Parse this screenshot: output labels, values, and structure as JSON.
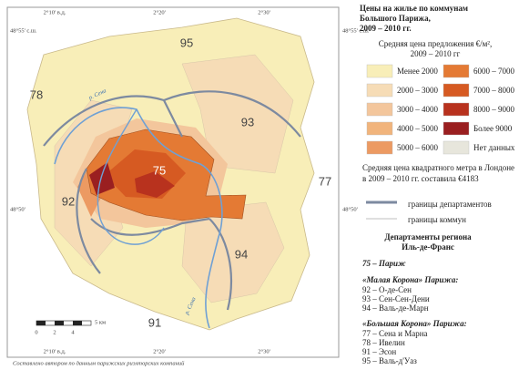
{
  "title": [
    "Цены на жилье по коммунам",
    "Большого Парижа,",
    "2009 – 2010 гг."
  ],
  "legend": {
    "title": [
      "Средняя цена предложения €/м²,",
      "2009 – 2010 гг"
    ],
    "items": [
      {
        "label": "Менее 2000",
        "color": "#f8eeb8"
      },
      {
        "label": "2000 – 3000",
        "color": "#f6dcb6"
      },
      {
        "label": "3000 – 4000",
        "color": "#f3c69c"
      },
      {
        "label": "4000 – 5000",
        "color": "#f1b47c"
      },
      {
        "label": "5000 – 6000",
        "color": "#ec9a62"
      },
      {
        "label": "6000 – 7000",
        "color": "#e47a34"
      },
      {
        "label": "7000 – 8000",
        "color": "#d65a22"
      },
      {
        "label": "8000 – 9000",
        "color": "#b8321e"
      },
      {
        "label": "Более 9000",
        "color": "#9a1f20"
      },
      {
        "label": "Нет данных",
        "color": "#e7e6dc"
      }
    ]
  },
  "london_note": [
    "Средняя цена квадратного метра в Лондоне",
    "в 2009 – 2010 гг. составила €4183"
  ],
  "line_legend": [
    "границы департаментов",
    "границы коммун"
  ],
  "departments": {
    "title": [
      "Департаменты региона",
      "Иль-де-Франс"
    ],
    "paris": "75 – Париж",
    "small_crown": {
      "title": "«Малая Корона» Парижа:",
      "items": [
        "92 – О-де-Сен",
        "93 – Сен-Сен-Дени",
        "94 – Валь-де-Марн"
      ]
    },
    "large_crown": {
      "title": "«Большая Корона» Парижа:",
      "items": [
        "77 – Сена и Марна",
        "78 – Ивелин",
        "91 – Эсон",
        "95 – Валь-д'Уаз"
      ]
    }
  },
  "map": {
    "labels": [
      "95",
      "78",
      "93",
      "92",
      "75",
      "94",
      "77",
      "91"
    ],
    "rivers": [
      "р. Сена",
      "р. Сена"
    ],
    "coords": {
      "lon": [
        "2°10' в.д.",
        "2°20'",
        "2°30'"
      ],
      "lat": [
        "48°55' с.ш.",
        "48°50'"
      ]
    },
    "scale": [
      "0",
      "2",
      "4",
      "5 км"
    ]
  },
  "source": "Составлено автором по данным парижских риэлторских компаний"
}
